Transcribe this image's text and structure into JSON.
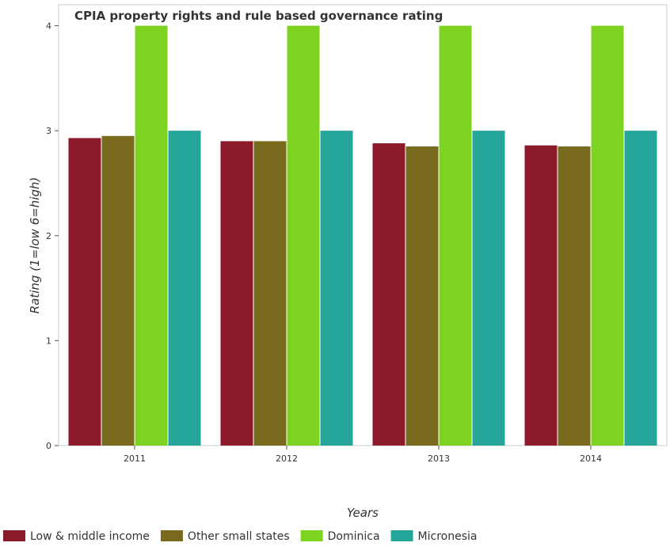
{
  "chart_data": {
    "type": "bar",
    "title": "CPIA property rights and rule based governance rating",
    "xlabel": "Years",
    "ylabel": "Rating (1=low 6=high)",
    "categories": [
      "2011",
      "2012",
      "2013",
      "2014"
    ],
    "ylim": [
      0,
      4.2
    ],
    "yticks": [
      0,
      1,
      2,
      3,
      4
    ],
    "grid": false,
    "legend_position": "bottom",
    "series": [
      {
        "name": "Low & middle income",
        "color": "#8b1a2b",
        "values": [
          2.93,
          2.9,
          2.88,
          2.86
        ]
      },
      {
        "name": "Other small states",
        "color": "#7a6a1e",
        "values": [
          2.95,
          2.9,
          2.85,
          2.85
        ]
      },
      {
        "name": "Dominica",
        "color": "#7ed321",
        "values": [
          4.0,
          4.0,
          4.0,
          4.0
        ]
      },
      {
        "name": "Micronesia",
        "color": "#26a69a",
        "values": [
          3.0,
          3.0,
          3.0,
          3.0
        ]
      }
    ]
  }
}
